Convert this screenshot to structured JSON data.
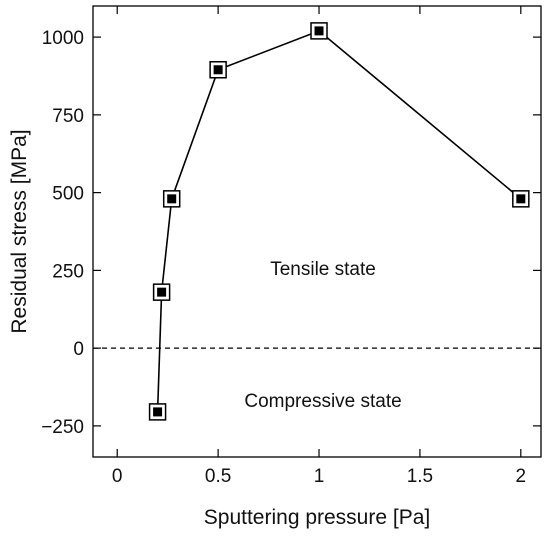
{
  "chart_data": {
    "type": "line",
    "title": "",
    "xlabel": "Sputtering pressure [Pa]",
    "ylabel": "Residual stress [MPa]",
    "xlim": [
      -0.12,
      2.1
    ],
    "ylim": [
      -350,
      1100
    ],
    "x_ticks": [
      0,
      0.5,
      1,
      1.5,
      2
    ],
    "x_tick_labels": [
      "0",
      "0.5",
      "1",
      "1.5",
      "2"
    ],
    "y_ticks": [
      -250,
      0,
      250,
      500,
      750,
      1000
    ],
    "y_tick_labels": [
      "−250",
      "0",
      "250",
      "500",
      "750",
      "1000"
    ],
    "grid": false,
    "legend": "none",
    "reference_line": {
      "y": 0,
      "style": "dashed"
    },
    "series": [
      {
        "x": [
          0.2,
          0.22,
          0.27,
          0.5,
          1.0,
          2.0
        ],
        "y": [
          -205,
          180,
          480,
          895,
          1020,
          480
        ],
        "marker": "square-in-square",
        "color": "#000000"
      }
    ],
    "annotations": [
      {
        "text": "Tensile state",
        "x": 1.02,
        "y": 235
      },
      {
        "text": "Compressive state",
        "x": 1.02,
        "y": -190
      }
    ]
  }
}
